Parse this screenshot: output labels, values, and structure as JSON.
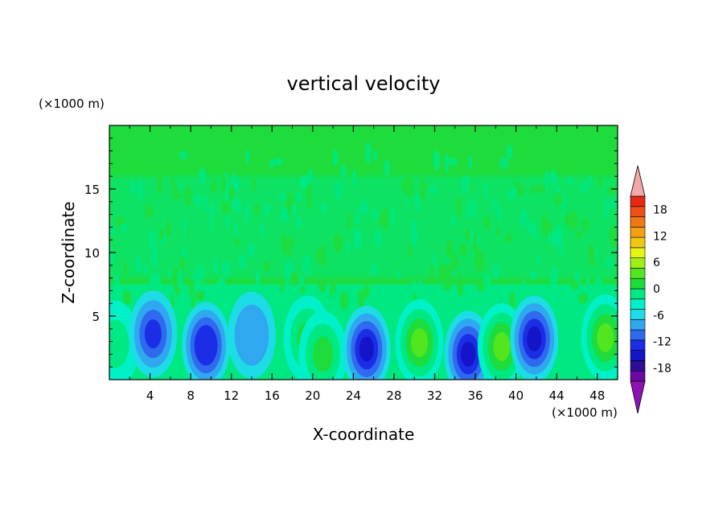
{
  "chart_data": {
    "type": "heatmap",
    "title": "vertical velocity",
    "xlabel": "X-coordinate",
    "ylabel": "Z-coordinate",
    "x_unit": "(×1000 m)",
    "y_unit": "(×1000 m)",
    "xlim": [
      0,
      50
    ],
    "ylim": [
      0,
      20
    ],
    "x_ticks": [
      4,
      8,
      12,
      16,
      20,
      24,
      28,
      32,
      36,
      40,
      44,
      48
    ],
    "y_ticks": [
      5,
      10,
      15
    ],
    "colorbar": {
      "min": -21,
      "max": 21,
      "step": 3,
      "tick_values": [
        18,
        12,
        6,
        0,
        -6,
        -12,
        -18
      ],
      "tick_labels": [
        "18",
        "12",
        "6",
        "0",
        "-6",
        "-12",
        "-18"
      ],
      "colors": [
        "#6a0aa0",
        "#2d0f96",
        "#1414c8",
        "#1b2ee6",
        "#2f69ee",
        "#30a8f0",
        "#1edce6",
        "#00f0c8",
        "#00e882",
        "#1edc3c",
        "#52e61e",
        "#a0f014",
        "#e6f514",
        "#f0c814",
        "#f5a014",
        "#f07814",
        "#ee5014",
        "#e62814",
        "#f4a7a7"
      ],
      "under_color": "#8c12b4",
      "over_color": "#f4a7a7"
    },
    "background_band_colors": {
      "upper": "#1edc3c",
      "upper_mixed": "#00e882",
      "lower": "#00e882"
    },
    "features": [
      {
        "x": 0.6,
        "z": 2.8,
        "w": -0.5,
        "sign": "up",
        "peak": 4
      },
      {
        "x": 4.3,
        "z": 3.6,
        "sign": "down",
        "peak": -11
      },
      {
        "x": 9.5,
        "z": 2.7,
        "sign": "down",
        "peak": -12
      },
      {
        "x": 14.0,
        "z": 3.5,
        "sign": "down",
        "peak": -6
      },
      {
        "x": 19.5,
        "z": 3.2,
        "sign": "up",
        "peak": 6
      },
      {
        "x": 21.0,
        "z": 2.0,
        "sign": "up",
        "peak": 7
      },
      {
        "x": 25.3,
        "z": 2.4,
        "sign": "down",
        "peak": -14
      },
      {
        "x": 30.5,
        "z": 2.9,
        "sign": "up",
        "peak": 11
      },
      {
        "x": 35.3,
        "z": 2.0,
        "sign": "down",
        "peak": -14
      },
      {
        "x": 38.6,
        "z": 2.6,
        "sign": "up",
        "peak": 10
      },
      {
        "x": 41.8,
        "z": 3.2,
        "sign": "down",
        "peak": -14
      },
      {
        "x": 48.8,
        "z": 3.3,
        "sign": "up",
        "peak": 11
      }
    ]
  }
}
